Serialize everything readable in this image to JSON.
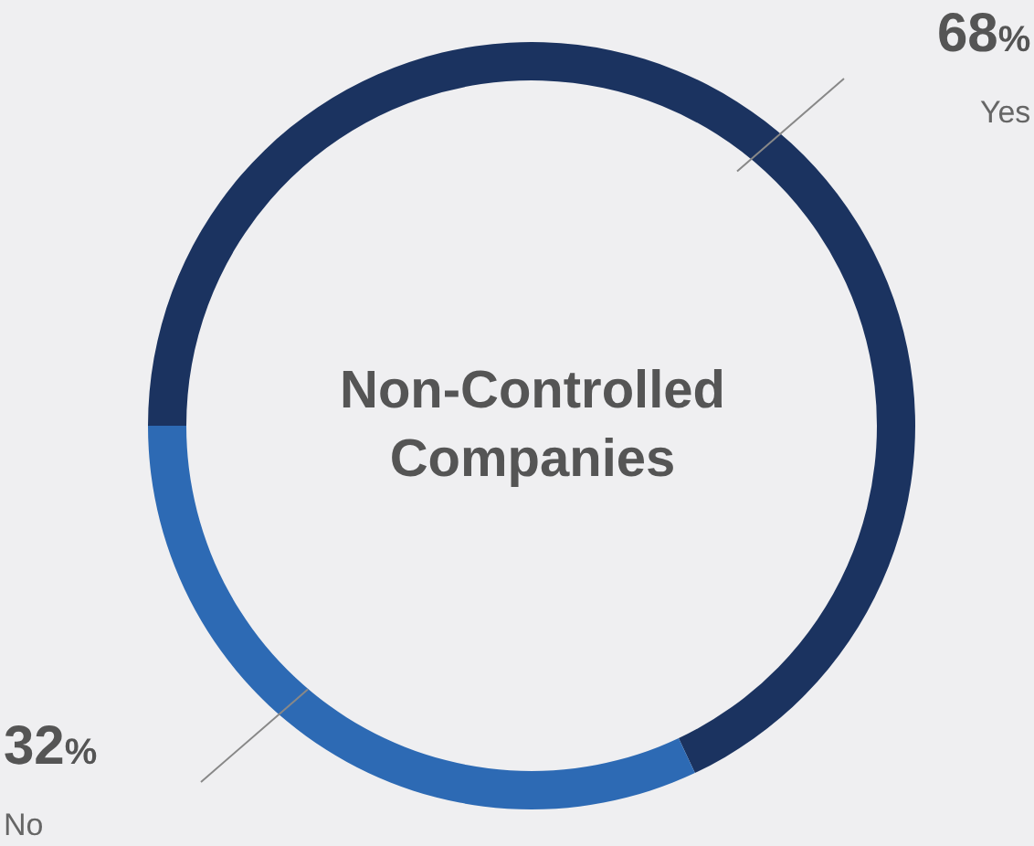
{
  "chart_data": {
    "type": "donut",
    "title": "Non-Controlled Companies",
    "categories": [
      "Yes",
      "No"
    ],
    "values": [
      68,
      32
    ],
    "colors": [
      "#1b3360",
      "#2d6ab4"
    ],
    "value_labels": [
      "68%",
      "32%"
    ]
  }
}
